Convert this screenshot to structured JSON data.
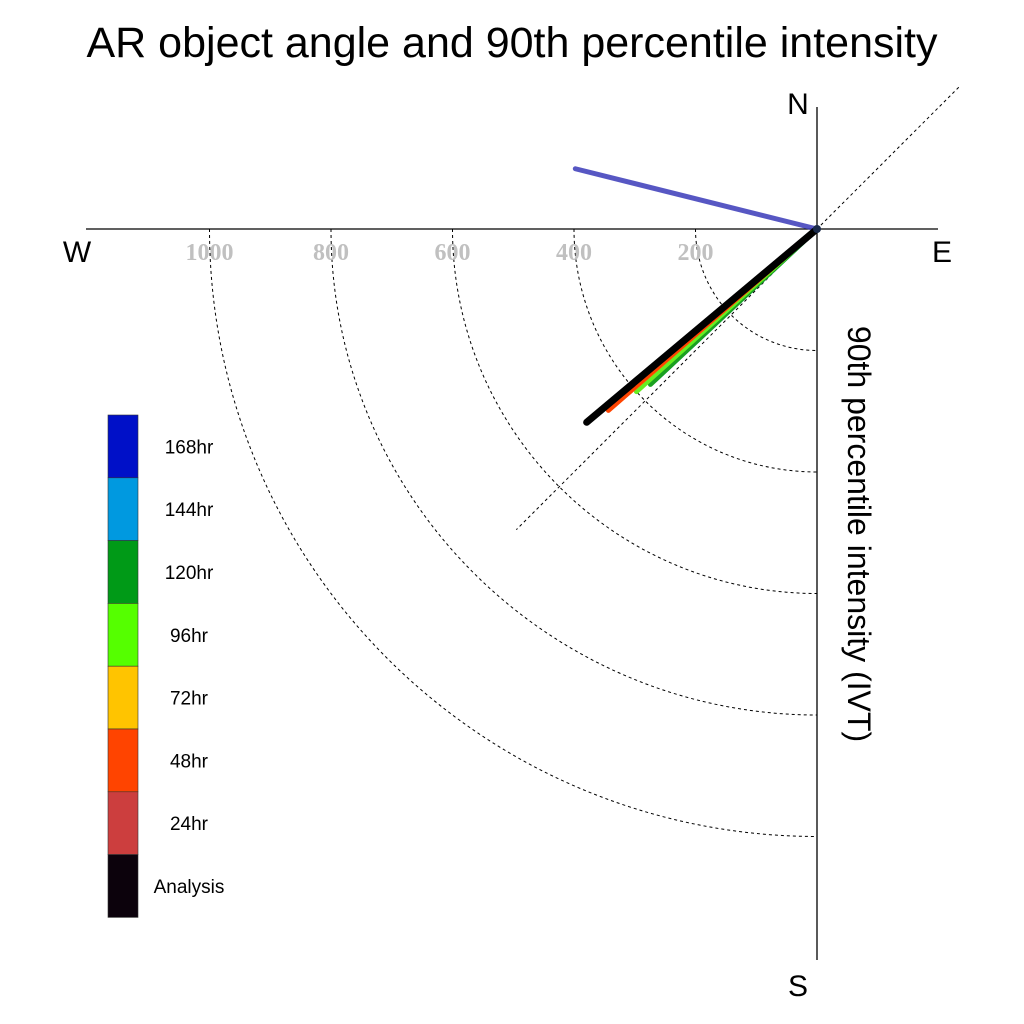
{
  "chart_data": {
    "type": "polar-vector",
    "title": "AR object angle and 90th percentile intensity",
    "radial_label": "90th percentile intensity (IVT)",
    "compass": {
      "north": "N",
      "south": "S",
      "east": "E",
      "west": "W"
    },
    "radial_ticks": [
      200,
      400,
      600,
      800,
      1000
    ],
    "rlim": [
      0,
      1200
    ],
    "grid": true,
    "legend_position": "left",
    "legend": [
      {
        "label": "168hr",
        "color": "#0010c8"
      },
      {
        "label": "144hr",
        "color": "#0099e0"
      },
      {
        "label": "120hr",
        "color": "#009a17"
      },
      {
        "label": "96hr",
        "color": "#55ff00"
      },
      {
        "label": "72hr",
        "color": "#ffc400"
      },
      {
        "label": "48hr",
        "color": "#ff4400"
      },
      {
        "label": "24hr",
        "color": "#cc3e3e"
      },
      {
        "label": "Analysis",
        "color": "#0c020c"
      }
    ],
    "series": [
      {
        "name": "168hr",
        "angle_deg": 284,
        "intensity": 410,
        "color": "#3a3ab8"
      },
      {
        "name": "144hr",
        "angle_deg": 227,
        "intensity": 365,
        "color": "#3aa8e0"
      },
      {
        "name": "120hr",
        "angle_deg": 227,
        "intensity": 375,
        "color": "#1aa020"
      },
      {
        "name": "96hr",
        "angle_deg": 228,
        "intensity": 400,
        "color": "#66ee22"
      },
      {
        "name": "72hr",
        "angle_deg": 229,
        "intensity": 410,
        "color": "#ffc400"
      },
      {
        "name": "48hr",
        "angle_deg": 229,
        "intensity": 455,
        "color": "#ff4400"
      },
      {
        "name": "24hr",
        "angle_deg": 230,
        "intensity": 475,
        "color": "#cc3e3e"
      },
      {
        "name": "Analysis",
        "angle_deg": 230,
        "intensity": 495,
        "color": "#000000"
      }
    ]
  }
}
